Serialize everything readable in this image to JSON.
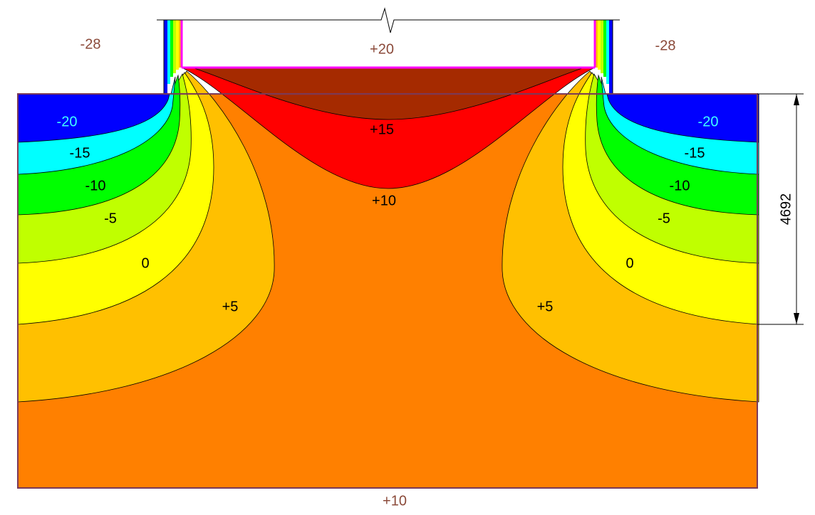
{
  "boundary_labels": {
    "outside_left": "-28",
    "inside": "+20",
    "outside_right": "-28",
    "ground": "+10"
  },
  "contour_labels": {
    "left": [
      "-20",
      "-15",
      "-10",
      "-5",
      "0",
      "+5"
    ],
    "center": [
      "+15",
      "+10"
    ],
    "right": [
      "-20",
      "-15",
      "-10",
      "-5",
      "0",
      "+5"
    ]
  },
  "dimension": "4692"
}
